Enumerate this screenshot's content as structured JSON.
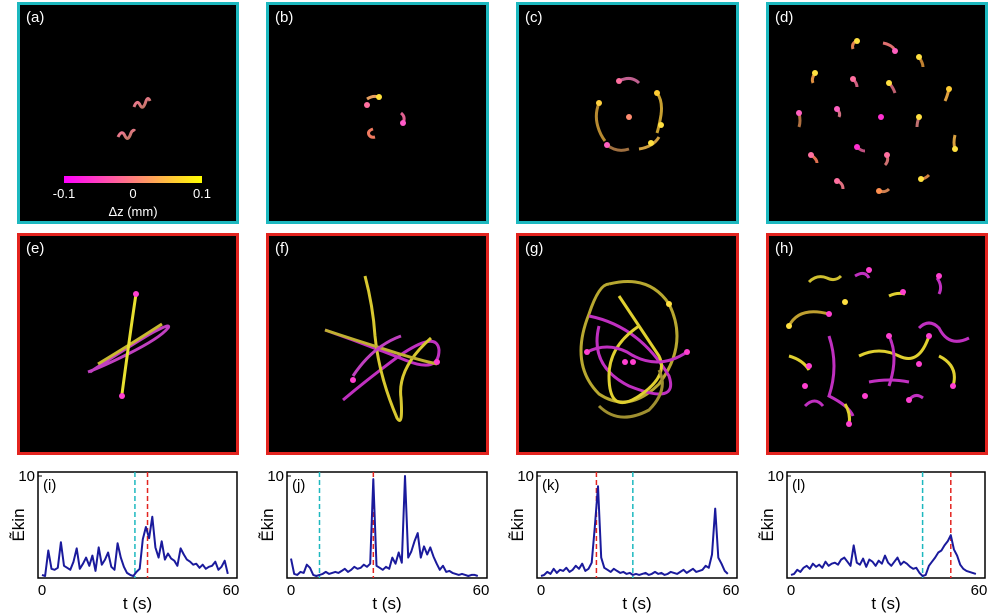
{
  "colors": {
    "frame_ordered": "#1db8bf",
    "frame_chaotic": "#e3241f",
    "series": "#1a1a9c",
    "marker_ordered": "#1db8bf",
    "marker_peak": "#e3241f",
    "cmap_low": "#ff00ff",
    "cmap_high": "#ffff00"
  },
  "colorbar": {
    "ticks": [
      "-0.1",
      "0",
      "0.1"
    ],
    "label": "Δz (mm)"
  },
  "top_row": [
    {
      "label": "(a)"
    },
    {
      "label": "(b)"
    },
    {
      "label": "(c)"
    },
    {
      "label": "(d)"
    }
  ],
  "middle_row": [
    {
      "label": "(e)"
    },
    {
      "label": "(f)"
    },
    {
      "label": "(g)"
    },
    {
      "label": "(h)"
    }
  ],
  "chart_data": [
    {
      "type": "line",
      "label": "(i)",
      "xlabel": "t (s)",
      "ylabel": "Ẽkin",
      "xlim": [
        0,
        60
      ],
      "ylim": [
        0,
        10
      ],
      "xticks": [
        "0",
        "60"
      ],
      "yticks": [
        "10"
      ],
      "ordered_time": 29.5,
      "peak_time": 33.5,
      "x": [
        0,
        1,
        2,
        3,
        4,
        5,
        6,
        7,
        8,
        9,
        10,
        11,
        12,
        13,
        14,
        15,
        16,
        17,
        18,
        19,
        20,
        21,
        22,
        23,
        24,
        25,
        26,
        27,
        28,
        29,
        30,
        31,
        32,
        33,
        34,
        35,
        36,
        37,
        38,
        39,
        40,
        41,
        42,
        43,
        44,
        45,
        46,
        47,
        48,
        49,
        50,
        51,
        52,
        53,
        54,
        55,
        56,
        57,
        58,
        59
      ],
      "values": [
        0.3,
        0.2,
        2.7,
        0.9,
        0.8,
        1.0,
        3.5,
        1.2,
        1.0,
        0.8,
        1.6,
        2.9,
        0.9,
        1.4,
        2.0,
        1.2,
        2.2,
        0.7,
        3.0,
        1.3,
        1.8,
        2.5,
        1.1,
        0.8,
        3.4,
        2.0,
        1.1,
        0.5,
        0.3,
        0.2,
        0.6,
        0.9,
        3.8,
        5.0,
        3.9,
        6.0,
        3.0,
        2.0,
        3.6,
        1.8,
        2.4,
        1.9,
        1.7,
        1.2,
        2.9,
        2.3,
        1.8,
        1.6,
        1.3,
        1.4,
        1.0,
        1.3,
        0.9,
        1.1,
        1.2,
        1.6,
        0.8,
        1.1,
        1.7,
        0.4
      ]
    },
    {
      "type": "line",
      "label": "(j)",
      "xlabel": "t (s)",
      "ylabel": "Ẽkin",
      "xlim": [
        0,
        60
      ],
      "ylim": [
        0,
        10
      ],
      "xticks": [
        "0",
        "60"
      ],
      "yticks": [
        "10"
      ],
      "ordered_time": 9,
      "peak_time": 26,
      "x": [
        0,
        1,
        2,
        3,
        4,
        5,
        6,
        7,
        8,
        9,
        10,
        11,
        12,
        13,
        14,
        15,
        16,
        17,
        18,
        19,
        20,
        21,
        22,
        23,
        24,
        25,
        26,
        27,
        28,
        29,
        30,
        31,
        32,
        33,
        34,
        35,
        36,
        37,
        38,
        39,
        40,
        41,
        42,
        43,
        44,
        45,
        46,
        47,
        48,
        49,
        50,
        51,
        52,
        53,
        54,
        55,
        56,
        57,
        58,
        59
      ],
      "values": [
        1.9,
        0.4,
        0.3,
        0.6,
        0.5,
        1.3,
        1.0,
        0.3,
        0.2,
        0.3,
        0.4,
        0.6,
        0.4,
        0.5,
        0.6,
        0.5,
        0.7,
        0.9,
        0.6,
        0.8,
        1.1,
        0.9,
        1.0,
        1.3,
        1.1,
        1.4,
        9.7,
        1.2,
        1.0,
        0.8,
        1.1,
        0.9,
        2.0,
        1.4,
        2.5,
        1.5,
        10.0,
        2.0,
        2.6,
        3.6,
        4.4,
        2.0,
        3.1,
        2.3,
        3.0,
        2.1,
        1.4,
        0.8,
        1.2,
        0.6,
        0.7,
        0.5,
        0.4,
        0.3,
        0.4,
        0.3,
        0.2,
        0.3,
        0.3,
        0.2
      ]
    },
    {
      "type": "line",
      "label": "(k)",
      "xlabel": "t (s)",
      "ylabel": "Ẽkin",
      "xlim": [
        0,
        60
      ],
      "ylim": [
        0,
        10
      ],
      "xticks": [
        "0",
        "60"
      ],
      "yticks": [
        "10"
      ],
      "ordered_time": 29,
      "peak_time": 17.5,
      "x": [
        0,
        1,
        2,
        3,
        4,
        5,
        6,
        7,
        8,
        9,
        10,
        11,
        12,
        13,
        14,
        15,
        16,
        17,
        18,
        19,
        20,
        21,
        22,
        23,
        24,
        25,
        26,
        27,
        28,
        29,
        30,
        31,
        32,
        33,
        34,
        35,
        36,
        37,
        38,
        39,
        40,
        41,
        42,
        43,
        44,
        45,
        46,
        47,
        48,
        49,
        50,
        51,
        52,
        53,
        54,
        55,
        56,
        57,
        58,
        59
      ],
      "values": [
        0.2,
        0.3,
        0.6,
        0.4,
        0.9,
        0.5,
        0.8,
        0.7,
        1.0,
        0.6,
        0.8,
        1.2,
        0.9,
        1.4,
        0.7,
        0.9,
        1.5,
        5.0,
        9.0,
        2.0,
        1.0,
        0.8,
        0.6,
        0.9,
        0.7,
        0.5,
        0.6,
        0.4,
        0.5,
        0.3,
        0.4,
        0.3,
        0.4,
        0.5,
        0.3,
        0.4,
        0.6,
        0.4,
        0.5,
        0.3,
        0.4,
        0.6,
        0.5,
        0.4,
        0.6,
        0.8,
        0.5,
        0.7,
        0.9,
        0.6,
        0.7,
        0.8,
        1.2,
        1.0,
        2.3,
        6.8,
        2.0,
        1.4,
        0.7,
        0.4
      ]
    },
    {
      "type": "line",
      "label": "(l)",
      "xlabel": "t (s)",
      "ylabel": "Ẽkin",
      "xlim": [
        0,
        60
      ],
      "ylim": [
        0,
        10
      ],
      "xticks": [
        "0",
        "60"
      ],
      "yticks": [
        "10"
      ],
      "ordered_time": 42,
      "peak_time": 51,
      "x": [
        0,
        1,
        2,
        3,
        4,
        5,
        6,
        7,
        8,
        9,
        10,
        11,
        12,
        13,
        14,
        15,
        16,
        17,
        18,
        19,
        20,
        21,
        22,
        23,
        24,
        25,
        26,
        27,
        28,
        29,
        30,
        31,
        32,
        33,
        34,
        35,
        36,
        37,
        38,
        39,
        40,
        41,
        42,
        43,
        44,
        45,
        46,
        47,
        48,
        49,
        50,
        51,
        52,
        53,
        54,
        55,
        56,
        57,
        58,
        59
      ],
      "values": [
        0.3,
        0.4,
        0.8,
        0.6,
        1.0,
        1.2,
        0.9,
        1.4,
        1.1,
        1.3,
        1.0,
        1.6,
        1.2,
        1.4,
        1.5,
        1.3,
        1.8,
        2.0,
        1.6,
        1.2,
        3.2,
        1.5,
        1.3,
        1.9,
        1.1,
        1.8,
        1.6,
        1.2,
        1.7,
        1.4,
        2.2,
        1.5,
        1.2,
        1.6,
        2.0,
        1.3,
        1.6,
        1.4,
        1.1,
        0.9,
        1.0,
        0.5,
        0.2,
        0.3,
        1.2,
        1.6,
        2.0,
        2.5,
        2.7,
        3.2,
        3.6,
        4.2,
        2.8,
        2.2,
        1.3,
        0.9,
        0.7,
        0.6,
        0.5,
        0.4
      ]
    }
  ]
}
